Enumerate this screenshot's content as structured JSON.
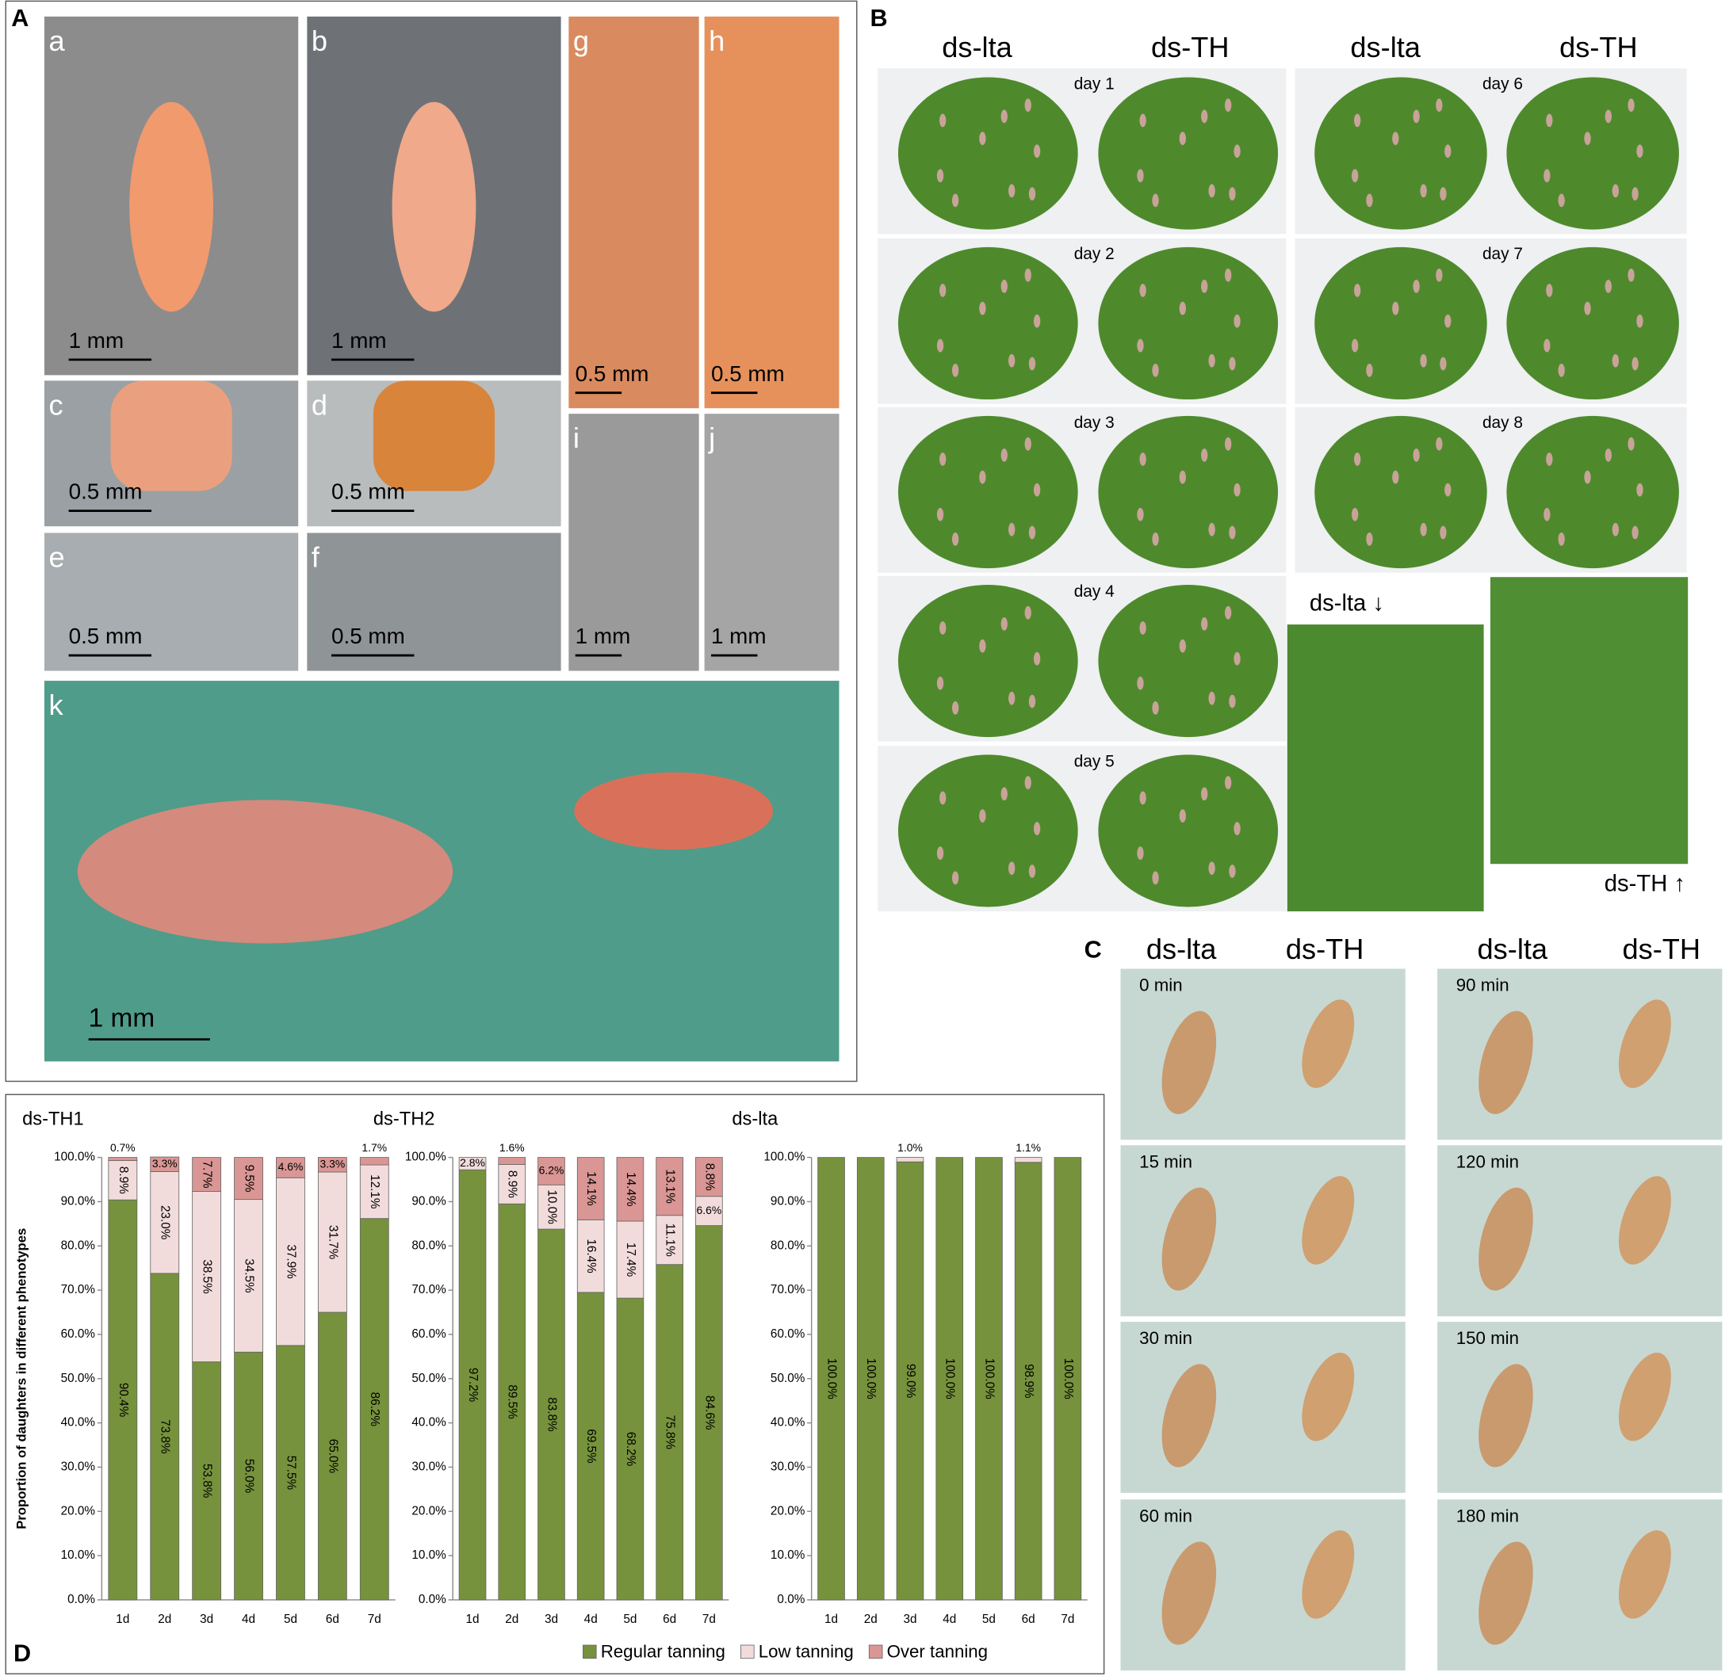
{
  "panel_letters": [
    "A",
    "B",
    "C",
    "D"
  ],
  "panel_A": {
    "sublabels": [
      "a",
      "b",
      "c",
      "d",
      "e",
      "f",
      "g",
      "h",
      "i",
      "j",
      "k"
    ],
    "scale_bars": [
      "1 mm",
      "1 mm",
      "0.5 mm",
      "0.5 mm",
      "0.5 mm",
      "0.5 mm",
      "0.5 mm",
      "0.5 mm",
      "1 mm",
      "1 mm",
      "1 mm"
    ]
  },
  "panel_B": {
    "headers": [
      "ds-lta",
      "ds-TH",
      "ds-lta",
      "ds-TH"
    ],
    "days": [
      "day 1",
      "day 2",
      "day 3",
      "day 4",
      "day 5",
      "day 6",
      "day 7",
      "day 8"
    ],
    "zoom_labels": [
      "ds-lta ↓",
      "ds-TH ↑"
    ]
  },
  "panel_C": {
    "headers": [
      "ds-lta",
      "ds-TH",
      "ds-lta",
      "ds-TH"
    ],
    "times": [
      "0 min",
      "15 min",
      "30 min",
      "60 min",
      "90 min",
      "120 min",
      "150 min",
      "180 min"
    ]
  },
  "chart_data": [
    {
      "type": "bar",
      "stacked": true,
      "title": "ds-TH1",
      "ylabel": "Proportion of daughters in different phenotypes",
      "categories": [
        "1d",
        "2d",
        "3d",
        "4d",
        "5d",
        "6d",
        "7d"
      ],
      "ylim": [
        0,
        100
      ],
      "yticks": [
        {
          "value": 0,
          "label": "0.0%"
        },
        {
          "value": 10,
          "label": "10.0%"
        },
        {
          "value": 20,
          "label": "20.0%"
        },
        {
          "value": 30,
          "label": "30.0%"
        },
        {
          "value": 40,
          "label": "40.0%"
        },
        {
          "value": 50,
          "label": "50.0%"
        },
        {
          "value": 60,
          "label": "60.0%"
        },
        {
          "value": 70,
          "label": "70.0%"
        },
        {
          "value": 80,
          "label": "80.0%"
        },
        {
          "value": 90,
          "label": "90.0%"
        },
        {
          "value": 100,
          "label": "100.0%"
        }
      ],
      "series": [
        {
          "name": "Regular tanning",
          "color": "#76923c",
          "values": [
            90.4,
            73.8,
            53.8,
            56.0,
            57.5,
            65.0,
            86.2
          ],
          "value_labels": [
            "90.4%",
            "73.8%",
            "53.8%",
            "56.0%",
            "57.5%",
            "65.0%",
            "86.2%"
          ]
        },
        {
          "name": "Low tanning",
          "color": "#f2dcdb",
          "values": [
            8.9,
            23.0,
            38.5,
            34.5,
            37.9,
            31.7,
            12.1
          ],
          "value_labels": [
            "8.9%",
            "23.0%",
            "38.5%",
            "34.5%",
            "37.9%",
            "31.7%",
            "12.1%"
          ]
        },
        {
          "name": "Over tanning",
          "color": "#d99694",
          "values": [
            0.7,
            3.3,
            7.7,
            9.5,
            4.6,
            3.3,
            1.7
          ],
          "value_labels": [
            "0.7%",
            "3.3%",
            "7.7%",
            "9.5%",
            "4.6%",
            "3.3%",
            "1.7%"
          ]
        }
      ]
    },
    {
      "type": "bar",
      "stacked": true,
      "title": "ds-TH2",
      "categories": [
        "1d",
        "2d",
        "3d",
        "4d",
        "5d",
        "6d",
        "7d"
      ],
      "ylim": [
        0,
        100
      ],
      "yticks": [
        {
          "value": 0,
          "label": "0.0%"
        },
        {
          "value": 10,
          "label": "10.0%"
        },
        {
          "value": 20,
          "label": "20.0%"
        },
        {
          "value": 30,
          "label": "30.0%"
        },
        {
          "value": 40,
          "label": "40.0%"
        },
        {
          "value": 50,
          "label": "50.0%"
        },
        {
          "value": 60,
          "label": "60.0%"
        },
        {
          "value": 70,
          "label": "70.0%"
        },
        {
          "value": 80,
          "label": "80.0%"
        },
        {
          "value": 90,
          "label": "90.0%"
        },
        {
          "value": 100,
          "label": "100.0%"
        }
      ],
      "series": [
        {
          "name": "Regular tanning",
          "color": "#76923c",
          "values": [
            97.2,
            89.5,
            83.8,
            69.5,
            68.2,
            75.8,
            84.6
          ],
          "value_labels": [
            "97.2%",
            "89.5%",
            "83.8%",
            "69.5%",
            "68.2%",
            "75.8%",
            "84.6%"
          ]
        },
        {
          "name": "Low tanning",
          "color": "#f2dcdb",
          "values": [
            2.8,
            8.9,
            10.0,
            16.4,
            17.4,
            11.1,
            6.6
          ],
          "value_labels": [
            "2.8%",
            "8.9%",
            "10.0%",
            "16.4%",
            "17.4%",
            "11.1%",
            "6.6%"
          ]
        },
        {
          "name": "Over tanning",
          "color": "#d99694",
          "values": [
            0,
            1.6,
            6.2,
            14.1,
            14.4,
            13.1,
            8.8
          ],
          "value_labels": [
            null,
            "1.6%",
            "6.2%",
            "14.1%",
            "14.4%",
            "13.1%",
            "8.8%"
          ]
        }
      ]
    },
    {
      "type": "bar",
      "stacked": true,
      "title": "ds-lta",
      "categories": [
        "1d",
        "2d",
        "3d",
        "4d",
        "5d",
        "6d",
        "7d"
      ],
      "ylim": [
        0,
        100
      ],
      "yticks": [
        {
          "value": 0,
          "label": "0.0%"
        },
        {
          "value": 10,
          "label": "10.0%"
        },
        {
          "value": 20,
          "label": "20.0%"
        },
        {
          "value": 30,
          "label": "30.0%"
        },
        {
          "value": 40,
          "label": "40.0%"
        },
        {
          "value": 50,
          "label": "50.0%"
        },
        {
          "value": 60,
          "label": "60.0%"
        },
        {
          "value": 70,
          "label": "70.0%"
        },
        {
          "value": 80,
          "label": "80.0%"
        },
        {
          "value": 90,
          "label": "90.0%"
        },
        {
          "value": 100,
          "label": "100.0%"
        }
      ],
      "series": [
        {
          "name": "Regular tanning",
          "color": "#76923c",
          "values": [
            100,
            100,
            99.0,
            100,
            100,
            98.9,
            100
          ],
          "value_labels": [
            "100.0%",
            "100.0%",
            "99.0%",
            "100.0%",
            "100.0%",
            "98.9%",
            "100.0%"
          ]
        },
        {
          "name": "Low tanning",
          "color": "#f2dcdb",
          "values": [
            0,
            0,
            1.0,
            0,
            0,
            1.1,
            0
          ],
          "value_labels": [
            null,
            null,
            "1.0%",
            null,
            null,
            "1.1%",
            null
          ]
        },
        {
          "name": "Over tanning",
          "color": "#d99694",
          "values": [
            0,
            0,
            0,
            0,
            0,
            0,
            0
          ],
          "value_labels": [
            null,
            null,
            null,
            null,
            null,
            null,
            null
          ]
        }
      ]
    }
  ]
}
